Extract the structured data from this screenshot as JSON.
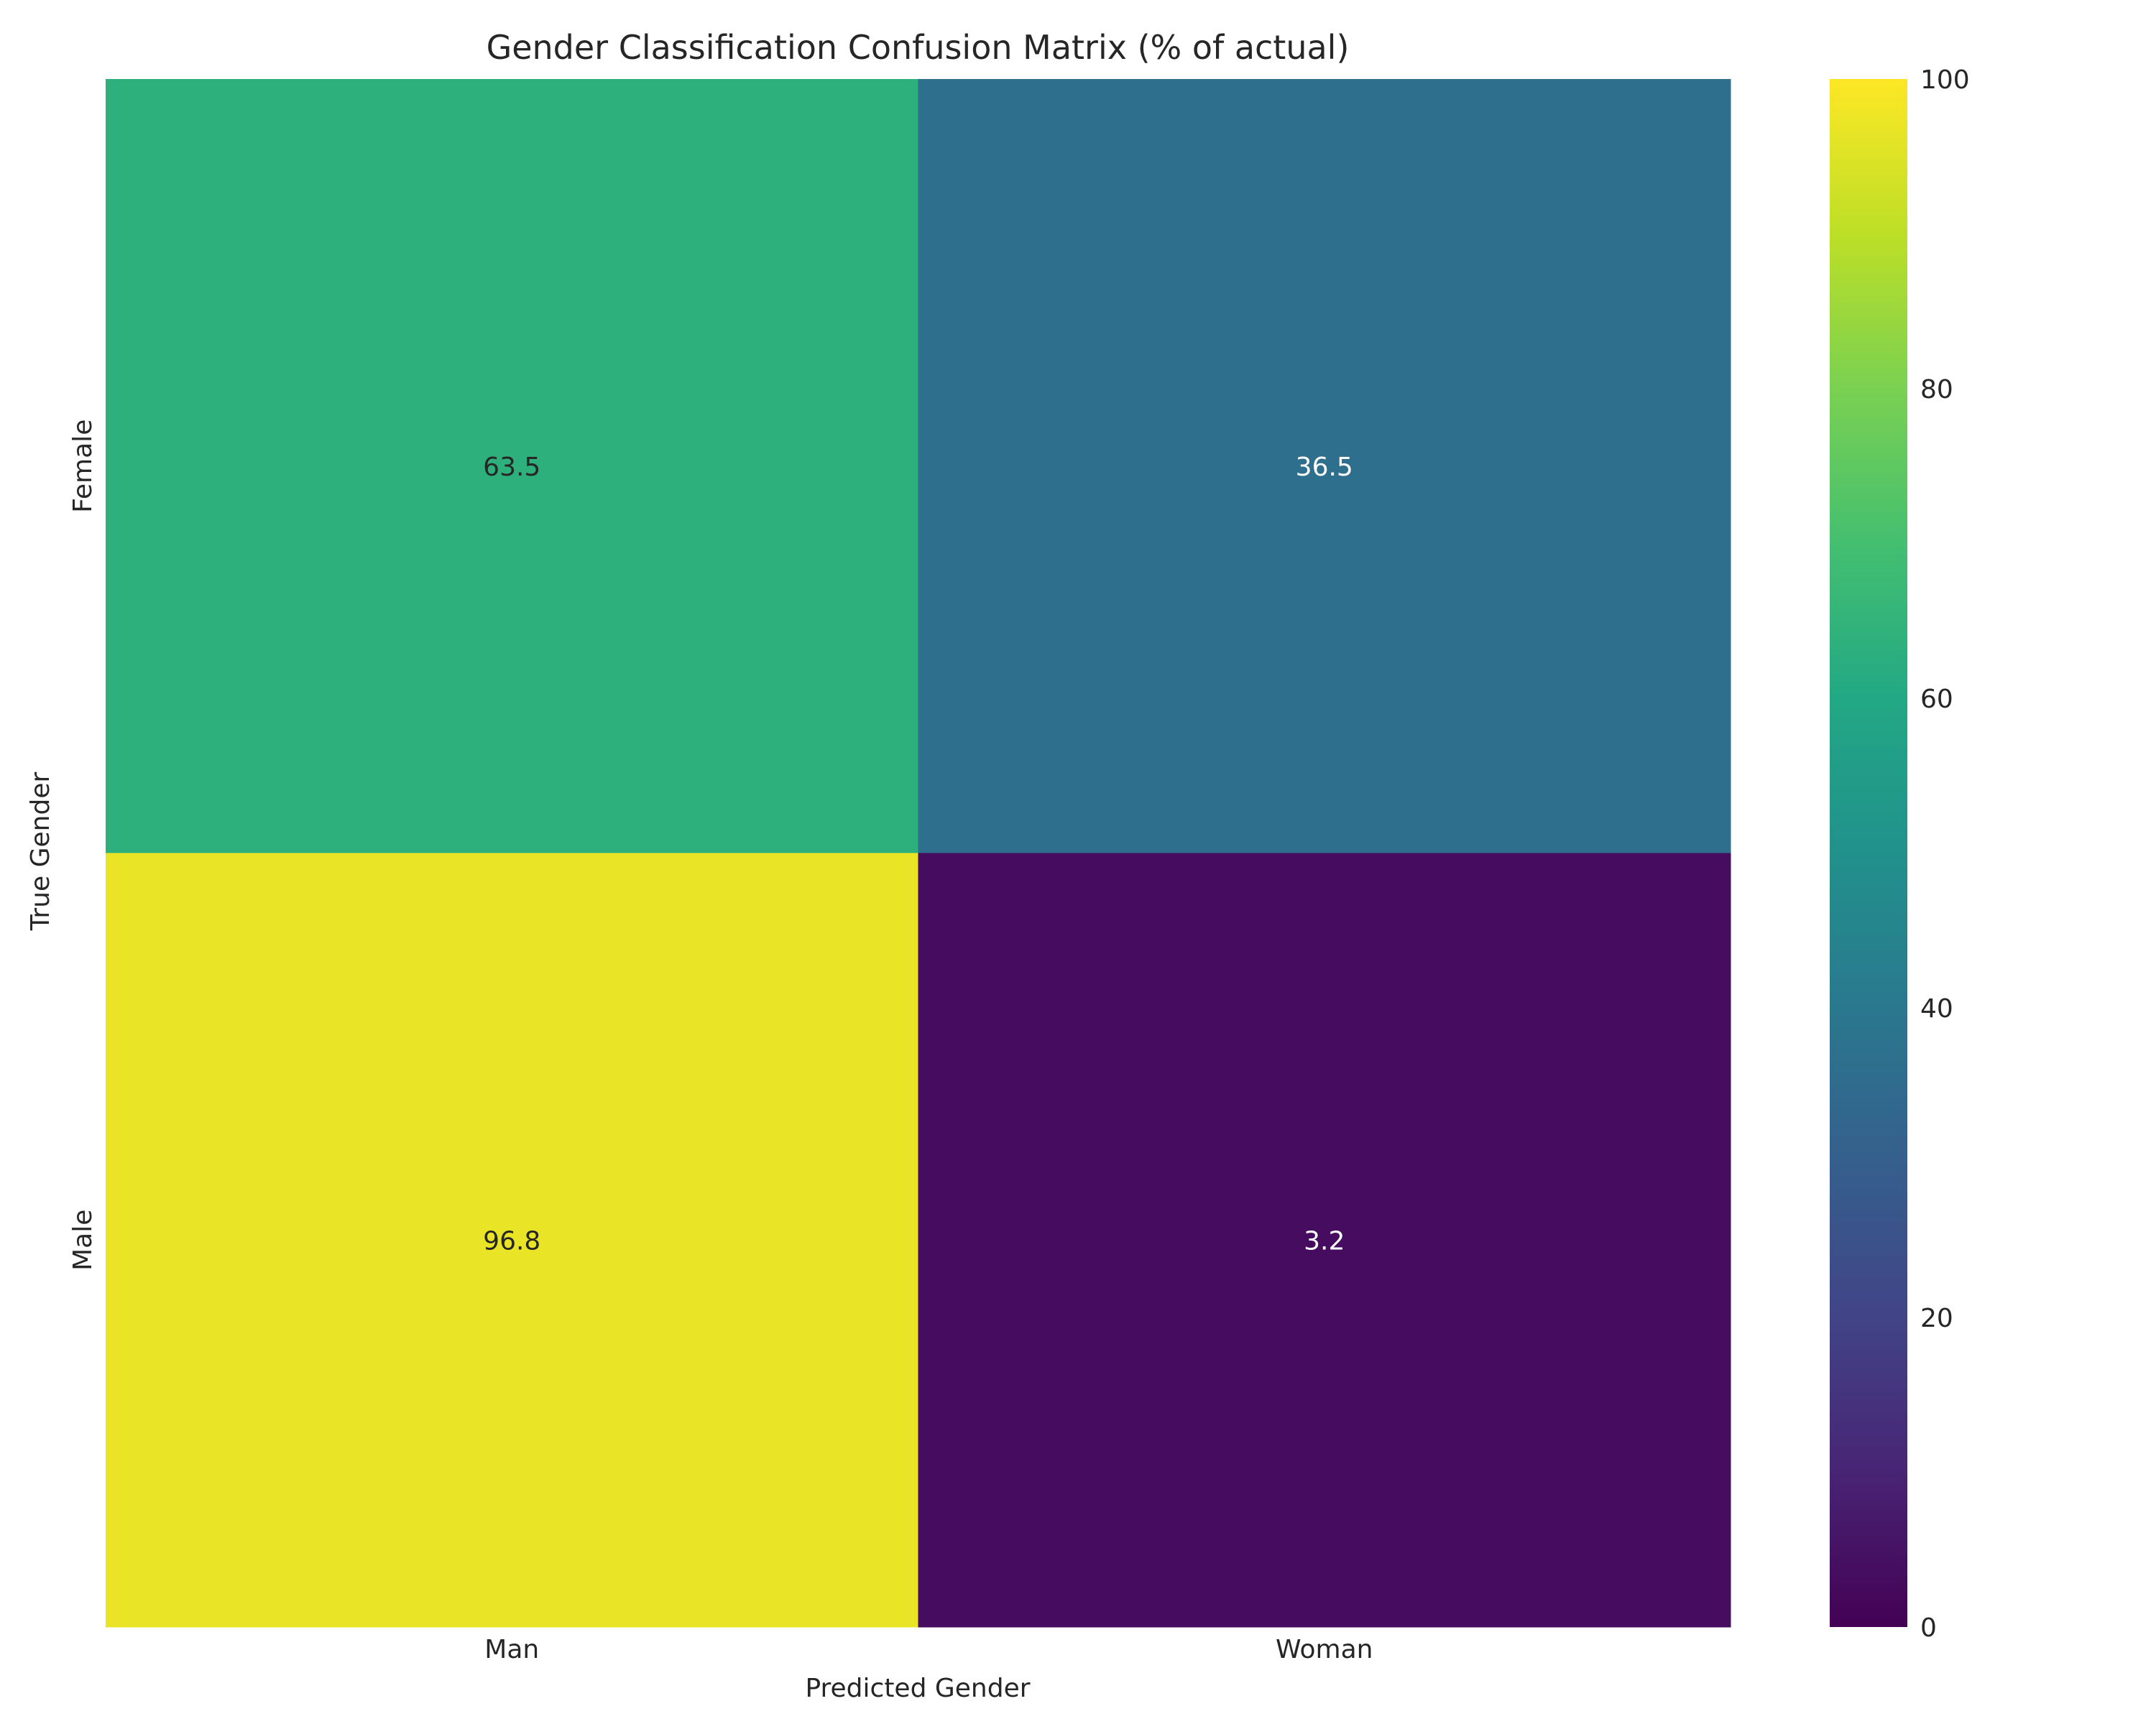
{
  "chart_data": {
    "type": "heatmap",
    "title": "Gender Classification Confusion Matrix (% of actual)",
    "xlabel": "Predicted Gender",
    "ylabel": "True Gender",
    "x_categories": [
      "Man",
      "Woman"
    ],
    "y_categories": [
      "Female",
      "Male"
    ],
    "values": [
      [
        63.5,
        36.5
      ],
      [
        96.8,
        3.2
      ]
    ],
    "value_range": [
      0,
      100
    ],
    "colormap": "viridis",
    "colorbar_ticks": [
      0,
      20,
      40,
      60,
      80,
      100
    ],
    "colorbar_tick_labels": [
      "0",
      "20",
      "40",
      "60",
      "80",
      "100"
    ],
    "grid": false
  }
}
